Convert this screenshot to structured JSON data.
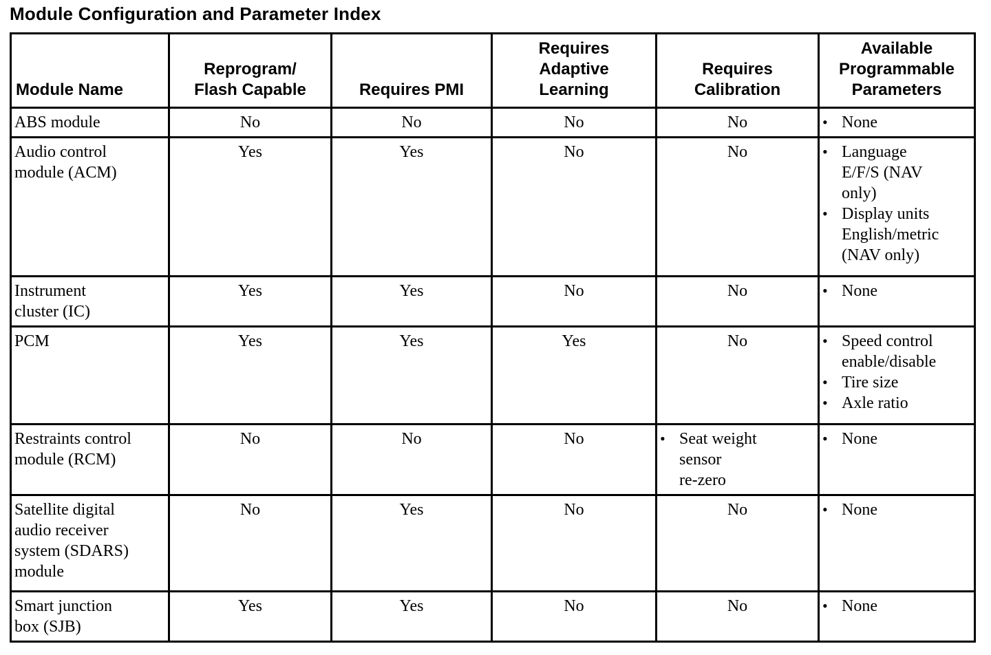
{
  "page_title": "Module Configuration and Parameter Index",
  "bullet_glyph": "•",
  "colors": {
    "text-color": "#000000",
    "bg-color": "#ffffff",
    "border-color": "#000000"
  },
  "table": {
    "columns": [
      {
        "key": "module_name",
        "label": "Module Name"
      },
      {
        "key": "reprogram_flash_capable",
        "label": "Reprogram/\nFlash Capable"
      },
      {
        "key": "requires_pmi",
        "label": "Requires PMI"
      },
      {
        "key": "requires_adaptive_learning",
        "label": "Requires\nAdaptive\nLearning"
      },
      {
        "key": "requires_calibration",
        "label": "Requires\nCalibration"
      },
      {
        "key": "available_programmable_parameters",
        "label": "Available\nProgrammable\nParameters"
      }
    ],
    "rows": [
      {
        "module_name": "ABS module",
        "reprogram_flash_capable": "No",
        "requires_pmi": "No",
        "requires_adaptive_learning": "No",
        "requires_calibration": "No",
        "available_programmable_parameters": [
          "None"
        ]
      },
      {
        "module_name": "Audio control\nmodule (ACM)",
        "reprogram_flash_capable": "Yes",
        "requires_pmi": "Yes",
        "requires_adaptive_learning": "No",
        "requires_calibration": "No",
        "available_programmable_parameters": [
          "Language\nE/F/S (NAV\nonly)",
          "Display units\nEnglish/metric\n(NAV only)"
        ]
      },
      {
        "module_name": "Instrument\ncluster (IC)",
        "reprogram_flash_capable": "Yes",
        "requires_pmi": "Yes",
        "requires_adaptive_learning": "No",
        "requires_calibration": "No",
        "available_programmable_parameters": [
          "None"
        ]
      },
      {
        "module_name": "PCM",
        "reprogram_flash_capable": "Yes",
        "requires_pmi": "Yes",
        "requires_adaptive_learning": "Yes",
        "requires_calibration": "No",
        "available_programmable_parameters": [
          "Speed control\nenable/disable",
          "Tire size",
          "Axle ratio"
        ]
      },
      {
        "module_name": "Restraints control\nmodule (RCM)",
        "reprogram_flash_capable": "No",
        "requires_pmi": "No",
        "requires_adaptive_learning": "No",
        "requires_calibration": [
          "Seat weight\nsensor\nre-zero"
        ],
        "available_programmable_parameters": [
          "None"
        ]
      },
      {
        "module_name": "Satellite digital\naudio receiver\nsystem (SDARS)\nmodule",
        "reprogram_flash_capable": "No",
        "requires_pmi": "Yes",
        "requires_adaptive_learning": "No",
        "requires_calibration": "No",
        "available_programmable_parameters": [
          "None"
        ]
      },
      {
        "module_name": "Smart junction\nbox (SJB)",
        "reprogram_flash_capable": "Yes",
        "requires_pmi": "Yes",
        "requires_adaptive_learning": "No",
        "requires_calibration": "No",
        "available_programmable_parameters": [
          "None"
        ]
      }
    ]
  }
}
